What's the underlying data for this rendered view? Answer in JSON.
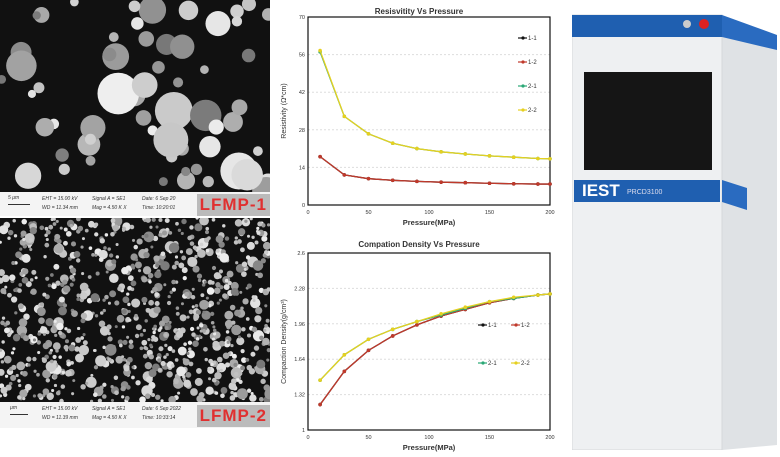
{
  "sem": [
    {
      "label": "LFMP-1",
      "scale": "5 µm",
      "eht": "EHT = 15.00 kV",
      "wd": "WD = 11.34 mm",
      "signal": "Signal A = SE1",
      "mag": "Mag =   4.50 K X",
      "date": "Date: 6 Sep 20",
      "time": "Time: 10:20:01"
    },
    {
      "label": "LFMP-2",
      "scale": "µm",
      "eht": "EHT = 15.00 kV",
      "wd": "WD = 11.39 mm",
      "signal": "Signal A = SE1",
      "mag": "Mag =   4.50 K X",
      "date": "Date: 6 Sep 2022",
      "time": "Time: 10:33:14"
    }
  ],
  "instrument": {
    "brand": "IEST",
    "model": "PRCD3100",
    "colors": {
      "accent": "#1f5fb0",
      "body": "#eceef0"
    }
  },
  "chart_data": [
    {
      "type": "line",
      "title": "Resisvitity Vs Pressure",
      "xlabel": "Pressure(MPa)",
      "ylabel": "Resistivity  (Ω*cm)",
      "xlim": [
        0,
        200
      ],
      "ylim": [
        0,
        70
      ],
      "xticks": [
        0,
        50,
        100,
        150,
        200
      ],
      "yticks": [
        0,
        14,
        28,
        42,
        56,
        70
      ],
      "grid": true,
      "legend": "right",
      "x": [
        10,
        30,
        50,
        70,
        90,
        110,
        130,
        150,
        170,
        190,
        200
      ],
      "series": [
        {
          "name": "1-1",
          "color": "#111111",
          "values": [
            18,
            11.2,
            9.8,
            9.2,
            8.8,
            8.5,
            8.3,
            8.1,
            7.9,
            7.8,
            7.8
          ]
        },
        {
          "name": "1-2",
          "color": "#c0392b",
          "values": [
            18,
            11.2,
            9.8,
            9.2,
            8.8,
            8.5,
            8.3,
            8.1,
            7.9,
            7.8,
            7.8
          ]
        },
        {
          "name": "2-1",
          "color": "#2aa876",
          "values": [
            57,
            33,
            26.5,
            23,
            21,
            19.8,
            19,
            18.3,
            17.8,
            17.3,
            17.2
          ]
        },
        {
          "name": "2-2",
          "color": "#e6d020",
          "values": [
            57.5,
            33,
            26.5,
            23,
            21,
            19.8,
            19,
            18.3,
            17.8,
            17.3,
            17.2
          ]
        }
      ]
    },
    {
      "type": "line",
      "title": "Compation Density Vs Pressure",
      "xlabel": "Pressure(MPa)",
      "ylabel": "Compaction Density(g/cm³)",
      "xlim": [
        0,
        200
      ],
      "ylim": [
        1,
        2.6
      ],
      "xticks": [
        0,
        50,
        100,
        150,
        200
      ],
      "yticks": [
        1,
        1.32,
        1.64,
        1.96,
        2.28,
        2.6
      ],
      "grid": true,
      "legend": "right",
      "x": [
        10,
        30,
        50,
        70,
        90,
        110,
        130,
        150,
        170,
        190,
        200
      ],
      "series": [
        {
          "name": "1-1",
          "color": "#111111",
          "values": [
            1.23,
            1.53,
            1.72,
            1.85,
            1.95,
            2.03,
            2.09,
            2.15,
            2.19,
            2.22,
            2.23
          ]
        },
        {
          "name": "1-2",
          "color": "#c0392b",
          "values": [
            1.23,
            1.53,
            1.72,
            1.85,
            1.95,
            2.03,
            2.09,
            2.15,
            2.19,
            2.22,
            2.23
          ]
        },
        {
          "name": "2-1",
          "color": "#2aa876",
          "values": [
            1.45,
            1.68,
            1.82,
            1.91,
            1.98,
            2.04,
            2.1,
            2.16,
            2.19,
            2.22,
            2.23
          ]
        },
        {
          "name": "2-2",
          "color": "#e6d020",
          "values": [
            1.45,
            1.68,
            1.82,
            1.91,
            1.98,
            2.05,
            2.11,
            2.16,
            2.2,
            2.22,
            2.23
          ]
        }
      ]
    }
  ]
}
